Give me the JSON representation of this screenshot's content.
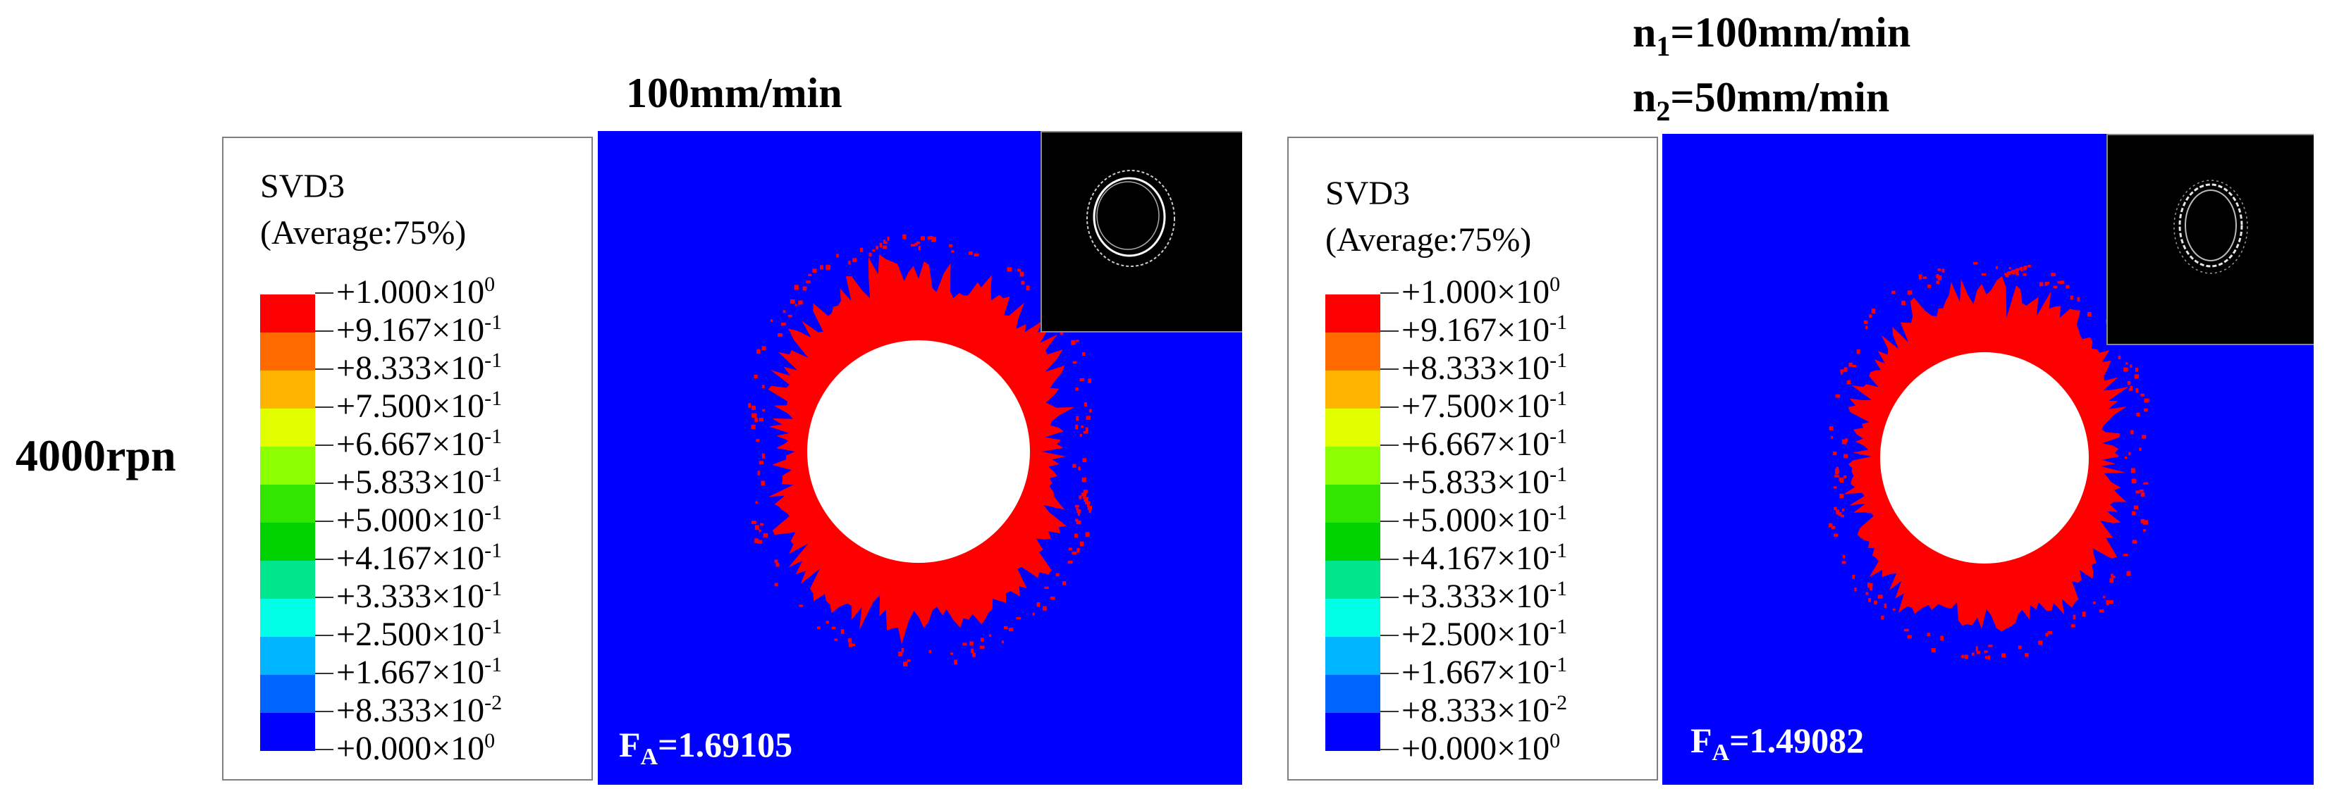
{
  "row_label": "4000rpn",
  "panels": [
    {
      "title_lines": [
        "100mm/min"
      ],
      "legend": {
        "title": "SVD3",
        "subtitle": "(Average:75%)"
      },
      "inset_icon": "ring-crack-contour-image",
      "fa_label": "F",
      "fa_sub": "A",
      "fa_value": "=1.69105"
    },
    {
      "title_lines": [
        {
          "n": "n",
          "sub": "1",
          "rest": "=100mm/min"
        },
        {
          "n": "n",
          "sub": "2",
          "rest": "=50mm/min"
        }
      ],
      "legend": {
        "title": "SVD3",
        "subtitle": "(Average:75%)"
      },
      "inset_icon": "ring-crack-contour-image",
      "fa_label": "F",
      "fa_sub": "A",
      "fa_value": "=1.49082"
    }
  ],
  "legend_scale": [
    {
      "mantissa": "+1.000×10",
      "exp": "0"
    },
    {
      "mantissa": "+9.167×10",
      "exp": "-1"
    },
    {
      "mantissa": "+8.333×10",
      "exp": "-1"
    },
    {
      "mantissa": "+7.500×10",
      "exp": "-1"
    },
    {
      "mantissa": "+6.667×10",
      "exp": "-1"
    },
    {
      "mantissa": "+5.833×10",
      "exp": "-1"
    },
    {
      "mantissa": "+5.000×10",
      "exp": "-1"
    },
    {
      "mantissa": "+4.167×10",
      "exp": "-1"
    },
    {
      "mantissa": "+3.333×10",
      "exp": "-1"
    },
    {
      "mantissa": "+2.500×10",
      "exp": "-1"
    },
    {
      "mantissa": "+1.667×10",
      "exp": "-1"
    },
    {
      "mantissa": "+8.333×10",
      "exp": "-2"
    },
    {
      "mantissa": "+0.000×10",
      "exp": "0"
    }
  ],
  "legend_colors": [
    "#ff0000",
    "#ff6a00",
    "#ffb400",
    "#e2ff00",
    "#8cff00",
    "#32e600",
    "#00d200",
    "#00e68c",
    "#00ffe6",
    "#00b4ff",
    "#0064ff",
    "#0000ff"
  ],
  "colors": {
    "background_field": "#0000ff",
    "damage_zone": "#ff0000",
    "hole": "#ffffff"
  }
}
